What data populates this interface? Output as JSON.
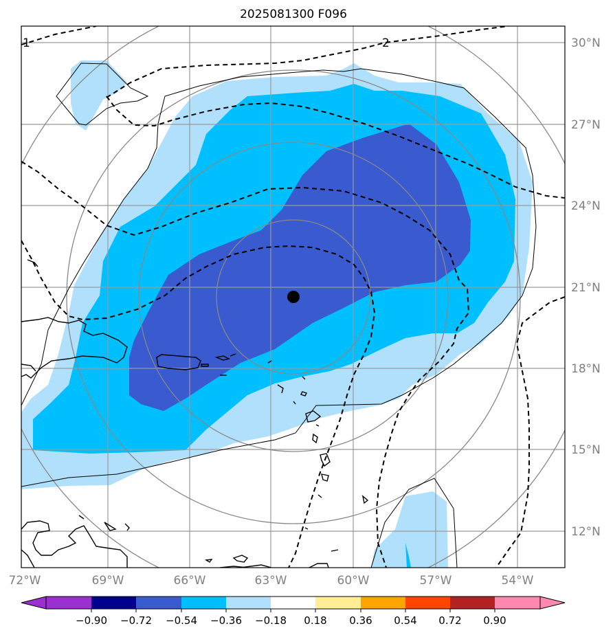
{
  "title": "2025081300 F096",
  "axes": {
    "x_ticks": [
      "72°W",
      "69°W",
      "66°W",
      "63°W",
      "60°W",
      "57°W",
      "54°W"
    ],
    "y_ticks": [
      "30°N",
      "27°N",
      "24°N",
      "21°N",
      "18°N",
      "15°N",
      "12°N"
    ]
  },
  "contour_labels": [
    "1",
    "2"
  ],
  "colorbar": {
    "tick_labels": [
      "−0.90",
      "−0.72",
      "−0.54",
      "−0.36",
      "−0.18",
      "0.18",
      "0.36",
      "0.54",
      "0.72",
      "0.90"
    ],
    "colors": [
      "#9a30d0",
      "#00008c",
      "#3a5bcf",
      "#00bfff",
      "#b0e0fb",
      "#ffffff",
      "#ffee96",
      "#ffa500",
      "#ff4500",
      "#b22222",
      "#ff88b0"
    ]
  },
  "fill_colors": {
    "light": "#b0e0fb",
    "mid": "#00bfff",
    "dark": "#3a5bcf"
  },
  "center_marker": {
    "lon": -62.2,
    "lat": 20.6
  }
}
